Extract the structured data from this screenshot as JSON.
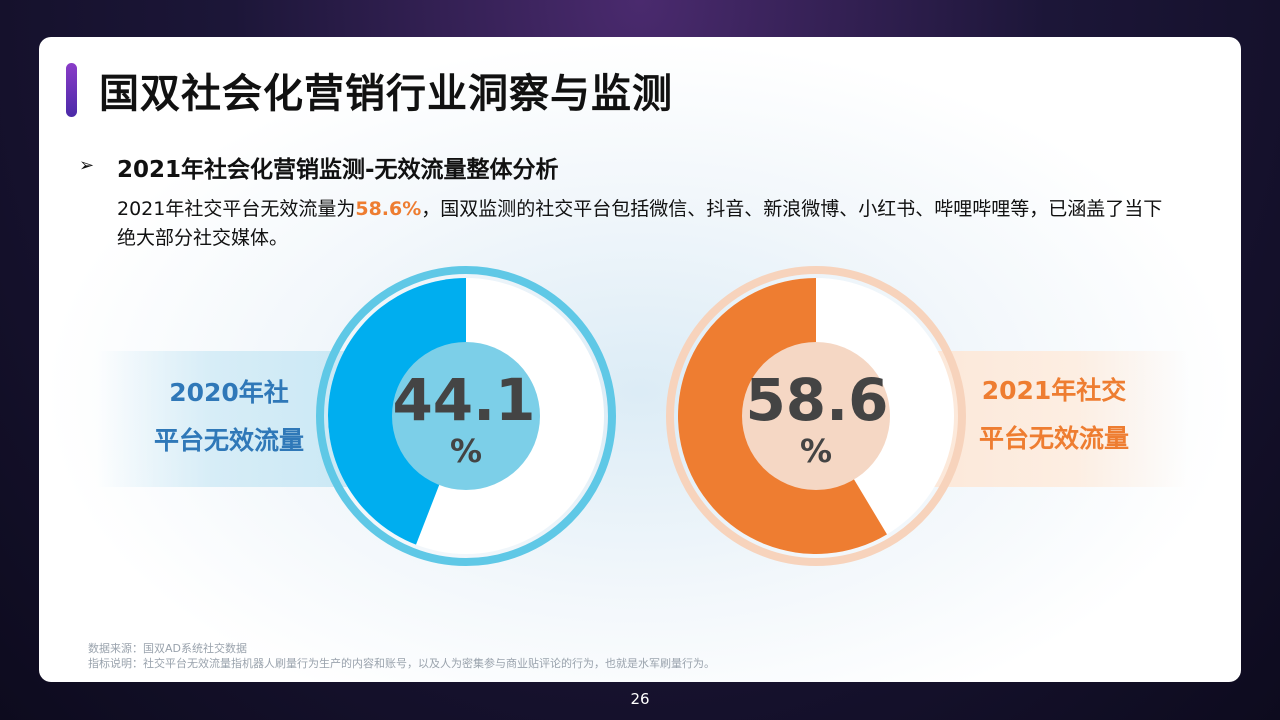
{
  "title": "国双社会化营销行业洞察与监测",
  "section": {
    "arrow": "➢",
    "subtitle": "2021年社会化营销监测-无效流量整体分析",
    "desc_before": "2021年社交平台无效流量为",
    "desc_highlight": "58.6%",
    "desc_after": "，国双监测的社交平台包括微信、抖音、新浪微博、小红书、哔哩哔哩等，已涵盖了当下绝大部分社交媒体。"
  },
  "colors": {
    "blue": "#00aeef",
    "blue_ring": "#5fc8e6",
    "blue_center": "#7ccfe8",
    "orange": "#ee7d31",
    "orange_ring": "#f7d3bc",
    "orange_center": "#f5d7c4",
    "value_text": "#444444"
  },
  "chart_data": [
    {
      "type": "pie",
      "label_line1": "2020年社",
      "label_line2": "平台无效流量",
      "value": 44.1,
      "value_text": "44.1",
      "unit": "%"
    },
    {
      "type": "pie",
      "label_line1": "2021年社交",
      "label_line2": "平台无效流量",
      "value": 58.6,
      "value_text": "58.6",
      "unit": "%"
    }
  ],
  "footnote": {
    "source": "数据来源：国双AD系统社交数据",
    "definition": "指标说明：社交平台无效流量指机器人刷量行为生产的内容和账号，以及人为密集参与商业贴评论的行为，也就是水军刷量行为。"
  },
  "page_number": "26"
}
